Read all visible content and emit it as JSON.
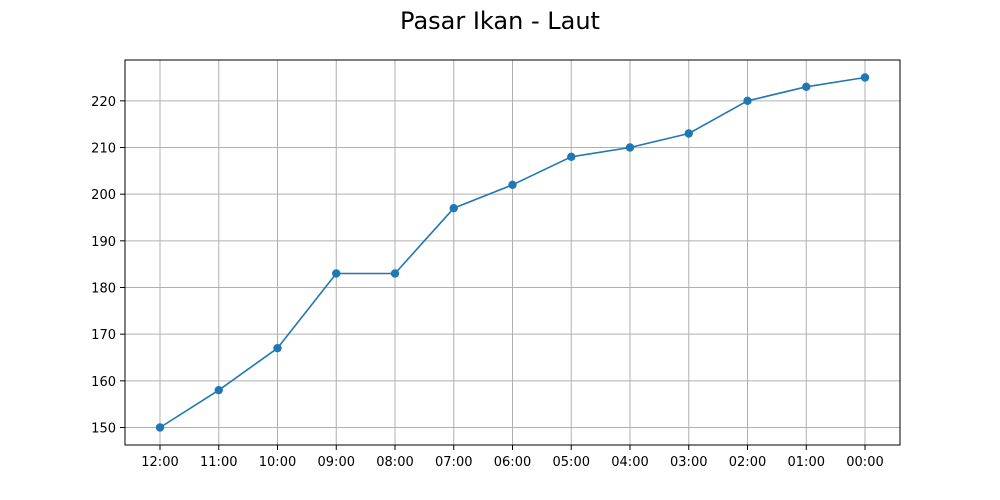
{
  "chart_data": {
    "type": "line",
    "title": "Pasar Ikan - Laut",
    "xlabel": "",
    "ylabel": "",
    "categories": [
      "12:00",
      "11:00",
      "10:00",
      "09:00",
      "08:00",
      "07:00",
      "06:00",
      "05:00",
      "04:00",
      "03:00",
      "02:00",
      "01:00",
      "00:00"
    ],
    "series": [
      {
        "values": [
          150,
          158,
          167,
          183,
          183,
          197,
          202,
          208,
          210,
          213,
          220,
          223,
          225
        ],
        "color": "#1f77b4",
        "marker": "circle"
      }
    ],
    "yticks": [
      150,
      160,
      170,
      180,
      190,
      200,
      210,
      220
    ],
    "ylim": [
      146.25,
      228.75
    ],
    "grid": true,
    "colors": {
      "line": "#1f77b4",
      "grid": "#b0b0b0",
      "axes": "#000000"
    }
  }
}
